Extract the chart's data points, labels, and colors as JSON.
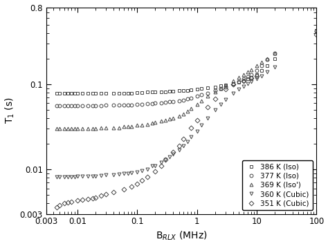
{
  "title": "",
  "xlabel": "B$_{RLX}$ (MHz)",
  "ylabel": "T$_1$ (s)",
  "xlim": [
    0.003,
    100
  ],
  "ylim": [
    0.003,
    0.8
  ],
  "legend_labels": [
    "386 K (Iso)",
    "377 K (Iso)",
    "369 K (Iso')",
    "360 K (Cubic)",
    "351 K (Cubic)"
  ],
  "series": {
    "386K": {
      "x": [
        0.0045,
        0.005,
        0.006,
        0.007,
        0.008,
        0.009,
        0.01,
        0.012,
        0.015,
        0.018,
        0.02,
        0.025,
        0.03,
        0.04,
        0.05,
        0.06,
        0.07,
        0.08,
        0.1,
        0.12,
        0.15,
        0.18,
        0.2,
        0.25,
        0.3,
        0.35,
        0.4,
        0.5,
        0.6,
        0.7,
        0.8,
        1.0,
        1.2,
        1.5,
        2.0,
        2.5,
        3.0,
        4.0,
        5.0,
        6.0,
        7.0,
        8.0,
        10.0,
        12.0,
        15.0,
        20.0,
        100.0
      ],
      "y": [
        0.079,
        0.079,
        0.079,
        0.079,
        0.079,
        0.079,
        0.079,
        0.079,
        0.079,
        0.079,
        0.079,
        0.079,
        0.079,
        0.079,
        0.079,
        0.079,
        0.079,
        0.079,
        0.08,
        0.08,
        0.081,
        0.081,
        0.082,
        0.082,
        0.082,
        0.083,
        0.083,
        0.084,
        0.084,
        0.085,
        0.086,
        0.087,
        0.089,
        0.091,
        0.093,
        0.096,
        0.098,
        0.102,
        0.106,
        0.11,
        0.115,
        0.12,
        0.13,
        0.145,
        0.165,
        0.2,
        0.43
      ],
      "marker": "s",
      "color": "#444444"
    },
    "377K": {
      "x": [
        0.0045,
        0.005,
        0.006,
        0.007,
        0.008,
        0.009,
        0.01,
        0.012,
        0.015,
        0.018,
        0.02,
        0.025,
        0.03,
        0.04,
        0.05,
        0.06,
        0.07,
        0.08,
        0.1,
        0.12,
        0.15,
        0.18,
        0.2,
        0.25,
        0.3,
        0.35,
        0.4,
        0.5,
        0.6,
        0.7,
        0.8,
        1.0,
        1.2,
        1.5,
        2.0,
        2.5,
        3.0,
        4.0,
        5.0,
        6.0,
        7.0,
        8.0,
        10.0,
        12.0,
        15.0,
        20.0,
        100.0
      ],
      "y": [
        0.056,
        0.056,
        0.056,
        0.056,
        0.056,
        0.056,
        0.056,
        0.056,
        0.056,
        0.056,
        0.056,
        0.056,
        0.057,
        0.057,
        0.057,
        0.057,
        0.057,
        0.057,
        0.058,
        0.058,
        0.059,
        0.059,
        0.06,
        0.06,
        0.061,
        0.062,
        0.063,
        0.064,
        0.065,
        0.067,
        0.069,
        0.072,
        0.075,
        0.079,
        0.084,
        0.089,
        0.093,
        0.1,
        0.108,
        0.115,
        0.122,
        0.13,
        0.145,
        0.165,
        0.195,
        0.23,
        0.42
      ],
      "marker": "o",
      "color": "#444444"
    },
    "369K": {
      "x": [
        0.0045,
        0.005,
        0.006,
        0.007,
        0.008,
        0.009,
        0.01,
        0.012,
        0.015,
        0.018,
        0.02,
        0.025,
        0.03,
        0.04,
        0.05,
        0.06,
        0.07,
        0.08,
        0.1,
        0.12,
        0.15,
        0.18,
        0.2,
        0.25,
        0.3,
        0.35,
        0.4,
        0.5,
        0.6,
        0.7,
        0.8,
        1.0,
        1.2,
        1.5,
        2.0,
        2.5,
        3.0,
        4.0,
        5.0,
        6.0,
        7.0,
        8.0,
        10.0,
        12.0,
        15.0,
        20.0
      ],
      "y": [
        0.03,
        0.03,
        0.03,
        0.03,
        0.03,
        0.03,
        0.03,
        0.03,
        0.03,
        0.03,
        0.03,
        0.031,
        0.031,
        0.031,
        0.031,
        0.032,
        0.032,
        0.032,
        0.033,
        0.033,
        0.034,
        0.035,
        0.036,
        0.037,
        0.038,
        0.039,
        0.04,
        0.042,
        0.045,
        0.048,
        0.052,
        0.058,
        0.064,
        0.072,
        0.082,
        0.09,
        0.098,
        0.11,
        0.12,
        0.13,
        0.14,
        0.148,
        0.165,
        0.18,
        0.2,
        0.23
      ],
      "marker": "^",
      "color": "#444444"
    },
    "360K": {
      "x": [
        0.0045,
        0.005,
        0.006,
        0.007,
        0.008,
        0.009,
        0.01,
        0.012,
        0.015,
        0.018,
        0.02,
        0.025,
        0.03,
        0.04,
        0.05,
        0.06,
        0.07,
        0.08,
        0.1,
        0.12,
        0.15,
        0.18,
        0.2,
        0.25,
        0.3,
        0.35,
        0.4,
        0.5,
        0.6,
        0.7,
        0.8,
        1.0,
        1.2,
        1.5,
        2.0,
        2.5,
        3.0,
        4.0,
        5.0,
        6.0,
        7.0,
        8.0,
        10.0,
        12.0,
        15.0,
        20.0
      ],
      "y": [
        0.0082,
        0.0082,
        0.0082,
        0.0082,
        0.0082,
        0.0082,
        0.0083,
        0.0083,
        0.0084,
        0.0084,
        0.0084,
        0.0085,
        0.0086,
        0.0087,
        0.0088,
        0.0089,
        0.009,
        0.0091,
        0.0093,
        0.0096,
        0.01,
        0.011,
        0.011,
        0.012,
        0.013,
        0.014,
        0.015,
        0.017,
        0.019,
        0.021,
        0.024,
        0.028,
        0.033,
        0.04,
        0.05,
        0.058,
        0.066,
        0.079,
        0.088,
        0.095,
        0.102,
        0.108,
        0.115,
        0.125,
        0.14,
        0.158
      ],
      "marker": "v",
      "color": "#444444"
    },
    "351K": {
      "x": [
        0.0045,
        0.005,
        0.006,
        0.007,
        0.008,
        0.01,
        0.012,
        0.015,
        0.018,
        0.02,
        0.025,
        0.03,
        0.04,
        0.06,
        0.08,
        0.1,
        0.12,
        0.15,
        0.2,
        0.25,
        0.3,
        0.4,
        0.5,
        0.6,
        0.8,
        1.0,
        1.5,
        2.0,
        3.0,
        4.0,
        6.0,
        8.0,
        10.0,
        100.0
      ],
      "y": [
        0.0036,
        0.0038,
        0.004,
        0.0041,
        0.0042,
        0.0043,
        0.0044,
        0.0045,
        0.0046,
        0.0047,
        0.0049,
        0.0051,
        0.0054,
        0.0058,
        0.0063,
        0.0068,
        0.0074,
        0.0082,
        0.0095,
        0.011,
        0.013,
        0.016,
        0.019,
        0.023,
        0.031,
        0.038,
        0.054,
        0.068,
        0.088,
        0.1,
        0.11,
        0.118,
        0.125,
        0.38
      ],
      "marker": "D",
      "color": "#444444"
    }
  },
  "background_color": "#ffffff",
  "marker_size": 3.5,
  "markeredgewidth": 0.7,
  "legend_fontsize": 7.5,
  "axis_fontsize": 10,
  "tick_fontsize": 8.5
}
